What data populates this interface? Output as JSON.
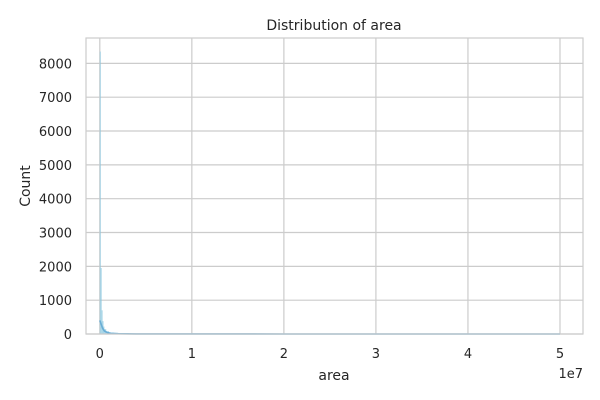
{
  "chart_data": {
    "type": "bar",
    "title": "Distribution of area",
    "xlabel": "area",
    "ylabel": "Count",
    "x_offset_label": "1e7",
    "xlim": [
      -1500000,
      52500000
    ],
    "ylim": [
      0,
      8750
    ],
    "x_ticks": [
      0,
      10000000,
      20000000,
      30000000,
      40000000,
      50000000
    ],
    "x_tick_labels": [
      "0",
      "1",
      "2",
      "3",
      "4",
      "5"
    ],
    "y_ticks": [
      0,
      1000,
      2000,
      3000,
      4000,
      5000,
      6000,
      7000,
      8000
    ],
    "y_tick_labels": [
      "0",
      "1000",
      "2000",
      "3000",
      "4000",
      "5000",
      "6000",
      "7000",
      "8000"
    ],
    "grid": true,
    "bar_color": "#87c5de",
    "kde_color": "#6aaed6",
    "bins": [
      {
        "x0": 0,
        "x1": 100000,
        "count": 8350
      },
      {
        "x0": 100000,
        "x1": 200000,
        "count": 1950
      },
      {
        "x0": 200000,
        "x1": 300000,
        "count": 700
      },
      {
        "x0": 300000,
        "x1": 400000,
        "count": 380
      },
      {
        "x0": 400000,
        "x1": 500000,
        "count": 220
      },
      {
        "x0": 500000,
        "x1": 700000,
        "count": 140
      },
      {
        "x0": 700000,
        "x1": 1000000,
        "count": 80
      },
      {
        "x0": 1000000,
        "x1": 1500000,
        "count": 40
      },
      {
        "x0": 1500000,
        "x1": 2500000,
        "count": 18
      },
      {
        "x0": 2500000,
        "x1": 5000000,
        "count": 8
      },
      {
        "x0": 5000000,
        "x1": 10000000,
        "count": 3
      },
      {
        "x0": 10000000,
        "x1": 50000000,
        "count": 1
      }
    ],
    "kde": {
      "x": [
        0,
        100000,
        200000,
        300000,
        500000,
        800000,
        1200000,
        2000000,
        4000000,
        8000000,
        20000000,
        50000000
      ],
      "y": [
        400,
        330,
        250,
        170,
        90,
        45,
        20,
        8,
        3,
        1,
        0.2,
        0
      ]
    }
  }
}
